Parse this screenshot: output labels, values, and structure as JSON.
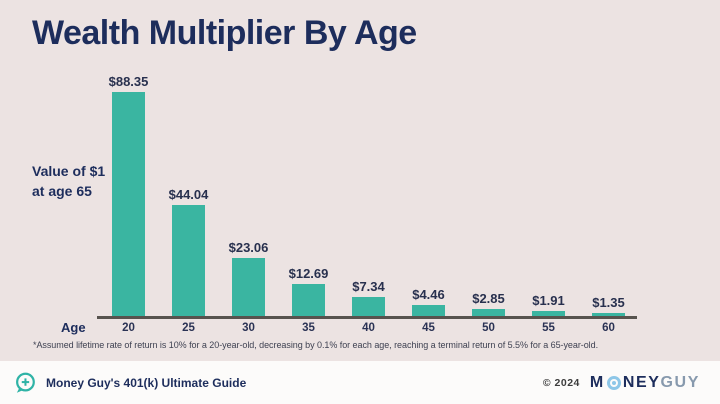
{
  "title": "Wealth Multiplier By Age",
  "y_annotation": {
    "line1": "Value of $1",
    "line2": "at age 65"
  },
  "chart_data": {
    "type": "bar",
    "title": "Wealth Multiplier By Age",
    "categories": [
      "20",
      "25",
      "30",
      "35",
      "40",
      "45",
      "50",
      "55",
      "60"
    ],
    "values": [
      88.35,
      44.04,
      23.06,
      12.69,
      7.34,
      4.46,
      2.85,
      1.91,
      1.35
    ],
    "value_labels": [
      "$88.35",
      "$44.04",
      "$23.06",
      "$12.69",
      "$7.34",
      "$4.46",
      "$2.85",
      "$1.91",
      "$1.35"
    ],
    "xlabel": "Age",
    "ylabel": "Value of $1 at age 65",
    "ylim": [
      0,
      90
    ],
    "grid": false,
    "legend": "none",
    "bar_color": "#3ab5a1",
    "axis_color": "#57534e"
  },
  "footnote": "*Assumed lifetime rate of return is 10% for a 20-year-old, decreasing by 0.1% for each age, reaching a terminal return of 5.5% for a 65-year-old.",
  "footer": {
    "left_label": "Money Guy's 401(k) Ultimate Guide",
    "copyright": "© 2024",
    "logo": {
      "m": "M",
      "o": "O",
      "ney": "NEY",
      "guy": "GUY"
    }
  },
  "colors": {
    "background": "#ece3e2",
    "footer_background": "#fcfbfa",
    "navy": "#1d2d5c",
    "teal": "#3ab5a1",
    "logo_blue": "#8ec7e8",
    "logo_gray": "#8799ad"
  }
}
